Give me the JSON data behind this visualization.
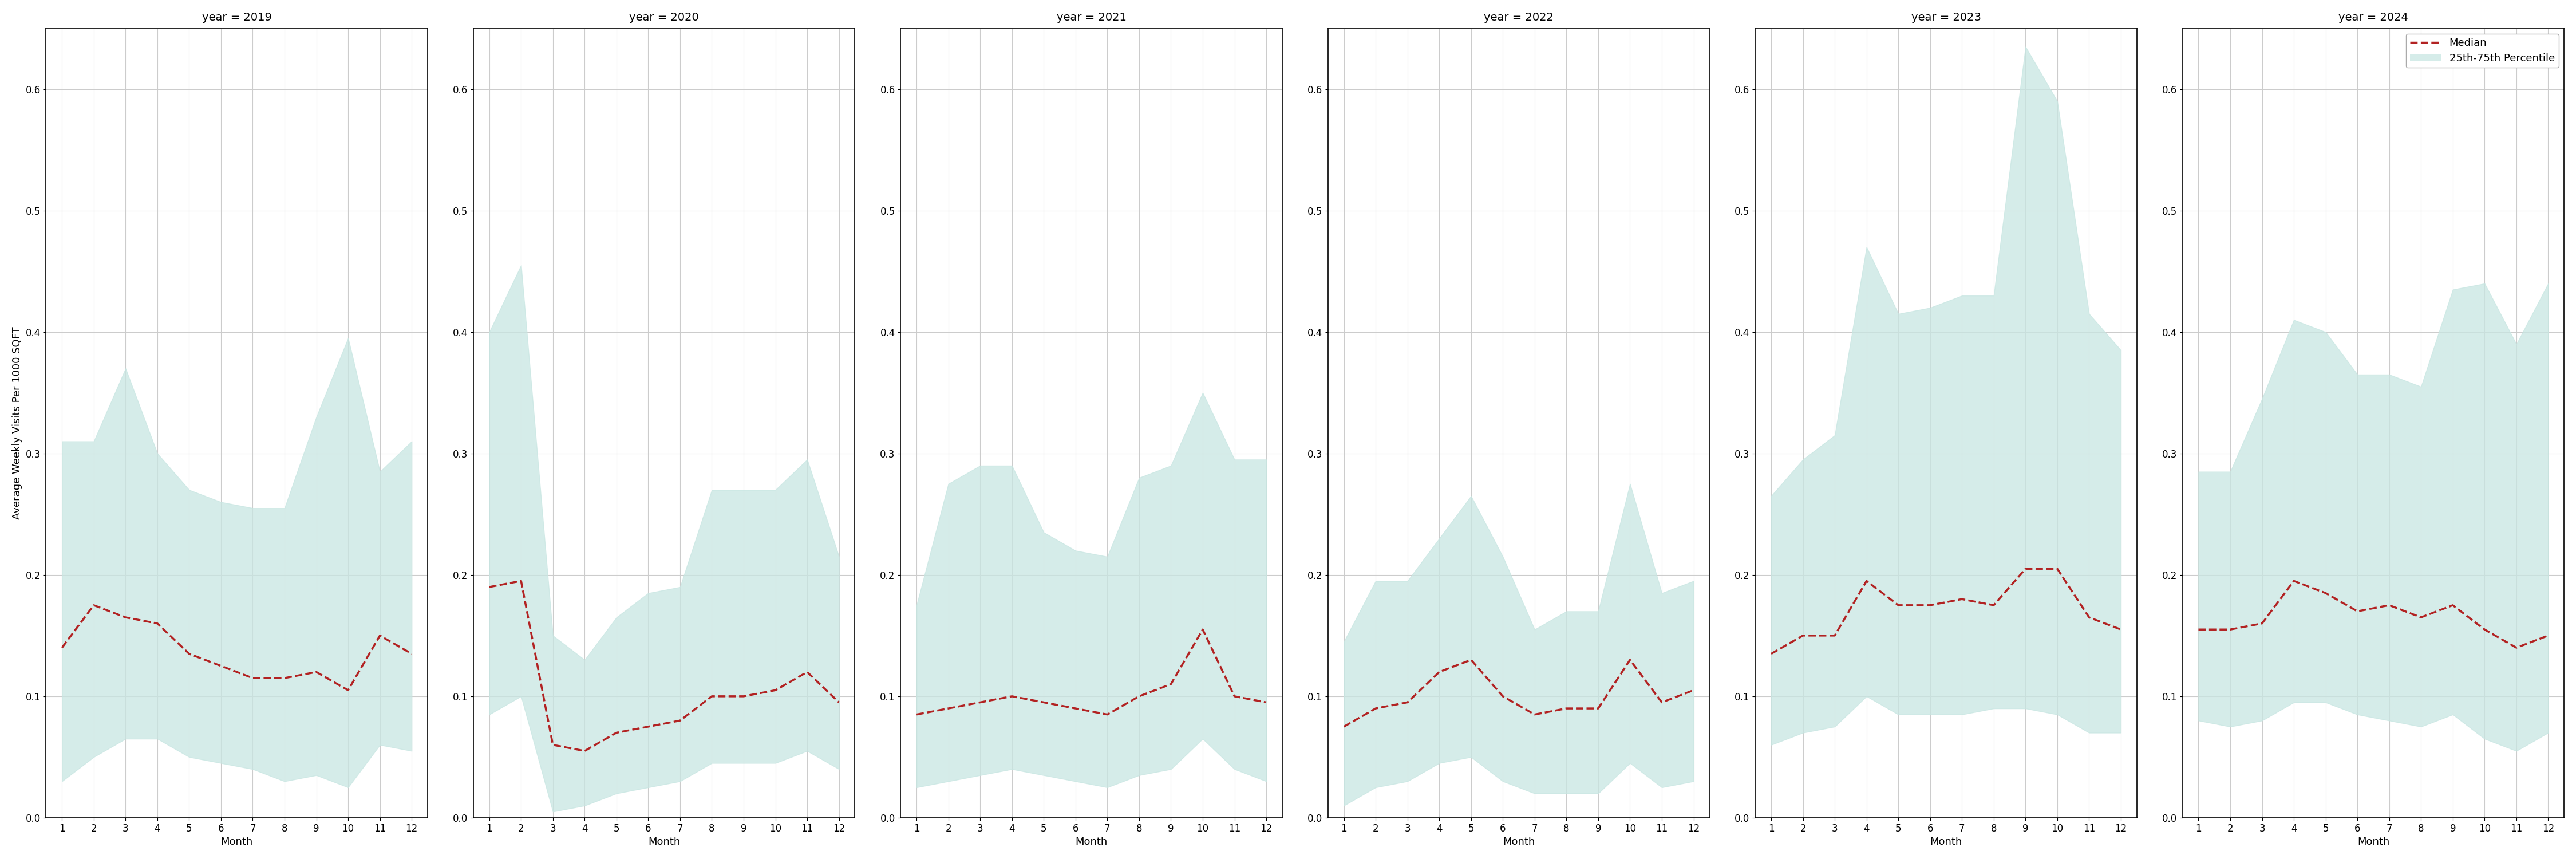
{
  "years": [
    2019,
    2020,
    2021,
    2022,
    2023,
    2024
  ],
  "months": [
    1,
    2,
    3,
    4,
    5,
    6,
    7,
    8,
    9,
    10,
    11,
    12
  ],
  "median": {
    "2019": [
      0.14,
      0.175,
      0.165,
      0.16,
      0.135,
      0.125,
      0.115,
      0.115,
      0.12,
      0.105,
      0.15,
      0.135
    ],
    "2020": [
      0.19,
      0.195,
      0.06,
      0.055,
      0.07,
      0.075,
      0.08,
      0.1,
      0.1,
      0.105,
      0.12,
      0.095
    ],
    "2021": [
      0.085,
      0.09,
      0.095,
      0.1,
      0.095,
      0.09,
      0.085,
      0.1,
      0.11,
      0.155,
      0.1,
      0.095
    ],
    "2022": [
      0.075,
      0.09,
      0.095,
      0.12,
      0.13,
      0.1,
      0.085,
      0.09,
      0.09,
      0.13,
      0.095,
      0.105
    ],
    "2023": [
      0.135,
      0.15,
      0.15,
      0.195,
      0.175,
      0.175,
      0.18,
      0.175,
      0.205,
      0.205,
      0.165,
      0.155
    ],
    "2024": [
      0.155,
      0.155,
      0.16,
      0.195,
      0.185,
      0.17,
      0.175,
      0.165,
      0.175,
      0.155,
      0.14,
      0.15
    ]
  },
  "q25": {
    "2019": [
      0.03,
      0.05,
      0.065,
      0.065,
      0.05,
      0.045,
      0.04,
      0.03,
      0.035,
      0.025,
      0.06,
      0.055
    ],
    "2020": [
      0.085,
      0.1,
      0.005,
      0.01,
      0.02,
      0.025,
      0.03,
      0.045,
      0.045,
      0.045,
      0.055,
      0.04
    ],
    "2021": [
      0.025,
      0.03,
      0.035,
      0.04,
      0.035,
      0.03,
      0.025,
      0.035,
      0.04,
      0.065,
      0.04,
      0.03
    ],
    "2022": [
      0.01,
      0.025,
      0.03,
      0.045,
      0.05,
      0.03,
      0.02,
      0.02,
      0.02,
      0.045,
      0.025,
      0.03
    ],
    "2023": [
      0.06,
      0.07,
      0.075,
      0.1,
      0.085,
      0.085,
      0.085,
      0.09,
      0.09,
      0.085,
      0.07,
      0.07
    ],
    "2024": [
      0.08,
      0.075,
      0.08,
      0.095,
      0.095,
      0.085,
      0.08,
      0.075,
      0.085,
      0.065,
      0.055,
      0.07
    ]
  },
  "q75": {
    "2019": [
      0.31,
      0.31,
      0.37,
      0.3,
      0.27,
      0.26,
      0.255,
      0.255,
      0.33,
      0.395,
      0.285,
      0.31
    ],
    "2020": [
      0.4,
      0.455,
      0.15,
      0.13,
      0.165,
      0.185,
      0.19,
      0.27,
      0.27,
      0.27,
      0.295,
      0.215
    ],
    "2021": [
      0.175,
      0.275,
      0.29,
      0.29,
      0.235,
      0.22,
      0.215,
      0.28,
      0.29,
      0.35,
      0.295,
      0.295
    ],
    "2022": [
      0.145,
      0.195,
      0.195,
      0.23,
      0.265,
      0.215,
      0.155,
      0.17,
      0.17,
      0.275,
      0.185,
      0.195
    ],
    "2023": [
      0.265,
      0.295,
      0.315,
      0.47,
      0.415,
      0.42,
      0.43,
      0.43,
      0.635,
      0.59,
      0.415,
      0.385
    ],
    "2024": [
      0.285,
      0.285,
      0.345,
      0.41,
      0.4,
      0.365,
      0.365,
      0.355,
      0.435,
      0.44,
      0.39,
      0.44
    ]
  },
  "ylim": [
    0.0,
    0.65
  ],
  "yticks": [
    0.0,
    0.1,
    0.2,
    0.3,
    0.4,
    0.5,
    0.6
  ],
  "fill_color": "#c8e6e2",
  "fill_alpha": 0.75,
  "line_color": "#b22222",
  "line_style": "--",
  "line_width": 2.5,
  "ylabel": "Average Weekly Visits Per 1000 SQFT",
  "xlabel": "Month",
  "background_color": "#ffffff",
  "grid_color": "#cccccc",
  "legend_median": "Median",
  "legend_fill": "25th-75th Percentile",
  "title_fontsize": 14,
  "label_fontsize": 13,
  "tick_fontsize": 12
}
